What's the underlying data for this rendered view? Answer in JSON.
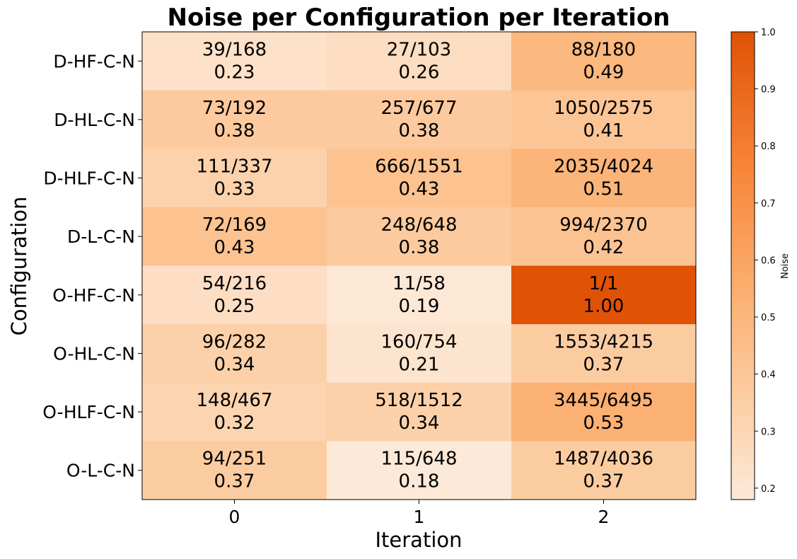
{
  "chart_data": {
    "type": "heatmap",
    "title": "Noise per Configuration per Iteration",
    "xlabel": "Iteration",
    "ylabel": "Configuration",
    "x_categories": [
      "0",
      "1",
      "2"
    ],
    "y_categories": [
      "D-HF-C-N",
      "D-HL-C-N",
      "D-HLF-C-N",
      "D-L-C-N",
      "O-HF-C-N",
      "O-HL-C-N",
      "O-HLF-C-N",
      "O-L-C-N"
    ],
    "counts": [
      [
        "39/168",
        "27/103",
        "88/180"
      ],
      [
        "73/192",
        "257/677",
        "1050/2575"
      ],
      [
        "111/337",
        "666/1551",
        "2035/4024"
      ],
      [
        "72/169",
        "248/648",
        "994/2370"
      ],
      [
        "54/216",
        "11/58",
        "1/1"
      ],
      [
        "96/282",
        "160/754",
        "1553/4215"
      ],
      [
        "148/467",
        "518/1512",
        "3445/6495"
      ],
      [
        "94/251",
        "115/648",
        "1487/4036"
      ]
    ],
    "values": [
      [
        "0.23",
        "0.26",
        "0.49"
      ],
      [
        "0.38",
        "0.38",
        "0.41"
      ],
      [
        "0.33",
        "0.43",
        "0.51"
      ],
      [
        "0.43",
        "0.38",
        "0.42"
      ],
      [
        "0.25",
        "0.19",
        "1.00"
      ],
      [
        "0.34",
        "0.21",
        "0.37"
      ],
      [
        "0.32",
        "0.34",
        "0.53"
      ],
      [
        "0.37",
        "0.18",
        "0.37"
      ]
    ],
    "colorbar": {
      "label": "Noise",
      "range": [
        0.18,
        1.0
      ],
      "ticks": [
        "0.2",
        "0.3",
        "0.4",
        "0.5",
        "0.6",
        "0.7",
        "0.8",
        "0.9",
        "1.0"
      ],
      "color_low": "#fde9d8",
      "color_high": "#e05206"
    }
  }
}
